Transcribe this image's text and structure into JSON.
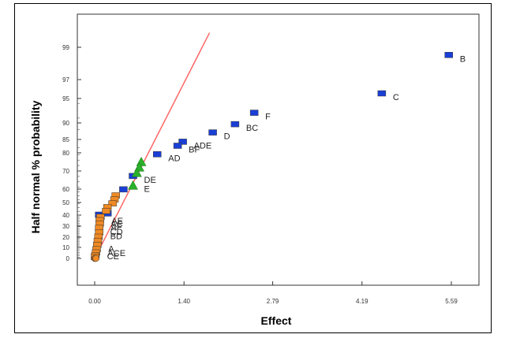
{
  "chart_data": {
    "type": "scatter",
    "xlabel": "Effect",
    "ylabel": "Half normal % probability",
    "xlim": [
      0,
      5.8
    ],
    "x_ticks": [
      "0.00",
      "1.40",
      "2.79",
      "4.19",
      "5.59"
    ],
    "x_tick_values": [
      0.0,
      1.4,
      2.79,
      4.19,
      5.59
    ],
    "y_ticks": [
      "0",
      "10",
      "20",
      "30",
      "40",
      "50",
      "60",
      "70",
      "80",
      "85",
      "90",
      "95",
      "97",
      "99"
    ],
    "y_tick_values": [
      0,
      10,
      20,
      30,
      40,
      50,
      60,
      70,
      80,
      85,
      90,
      95,
      97,
      99
    ],
    "grid": false,
    "reference_line": {
      "color": "#ff6666",
      "from": [
        0.0,
        0
      ],
      "to": [
        1.8,
        99.9
      ]
    },
    "colors": {
      "positive": "#1a3fd6",
      "negative": "#f08a24",
      "error": "#f08a24",
      "triangle": "#2ab02a"
    },
    "series": [
      {
        "marker": "square",
        "color": "#1a3fd6",
        "points": [
          {
            "label": "B",
            "x": 5.55,
            "y": 98.5
          },
          {
            "label": "C",
            "x": 4.5,
            "y": 95.5
          },
          {
            "label": "F",
            "x": 2.5,
            "y": 92.0
          },
          {
            "label": "BC",
            "x": 2.2,
            "y": 89.5
          },
          {
            "label": "D",
            "x": 1.85,
            "y": 87.0
          },
          {
            "label": "ADE",
            "x": 1.38,
            "y": 84.0
          },
          {
            "label": "BF",
            "x": 1.3,
            "y": 82.5
          },
          {
            "label": "AD",
            "x": 0.98,
            "y": 79.0
          },
          {
            "label": "DE",
            "x": 0.6,
            "y": 67.0
          },
          {
            "label": "",
            "x": 0.45,
            "y": 59.5
          },
          {
            "label": "",
            "x": 0.2,
            "y": 41.0
          },
          {
            "label": "",
            "x": 0.07,
            "y": 40.0
          }
        ]
      },
      {
        "marker": "triangle",
        "color": "#2ab02a",
        "points": [
          {
            "label": "",
            "x": 0.73,
            "y": 75.0
          },
          {
            "label": "",
            "x": 0.7,
            "y": 72.0
          },
          {
            "label": "",
            "x": 0.66,
            "y": 69.0
          },
          {
            "label": "E",
            "x": 0.6,
            "y": 62.0
          }
        ]
      },
      {
        "marker": "square",
        "color": "#f08a24",
        "points": [
          {
            "label": "",
            "x": 0.33,
            "y": 55.0
          },
          {
            "label": "",
            "x": 0.31,
            "y": 52.0
          },
          {
            "label": "",
            "x": 0.28,
            "y": 49.0
          },
          {
            "label": "",
            "x": 0.2,
            "y": 46.0
          },
          {
            "label": "",
            "x": 0.18,
            "y": 43.0
          },
          {
            "label": "AE",
            "x": 0.09,
            "y": 38.0
          },
          {
            "label": "AC",
            "x": 0.08,
            "y": 35.0
          },
          {
            "label": "AF",
            "x": 0.08,
            "y": 32.0
          },
          {
            "label": "CD",
            "x": 0.07,
            "y": 28.0
          },
          {
            "label": "BD",
            "x": 0.07,
            "y": 24.0
          },
          {
            "label": "",
            "x": 0.06,
            "y": 20.0
          },
          {
            "label": "",
            "x": 0.05,
            "y": 16.0
          },
          {
            "label": "A",
            "x": 0.04,
            "y": 12.0
          },
          {
            "label": "ACE",
            "x": 0.03,
            "y": 8.0
          },
          {
            "label": "CE",
            "x": 0.02,
            "y": 5.0
          },
          {
            "label": "",
            "x": 0.01,
            "y": 2.5
          },
          {
            "label": "",
            "x": 0.005,
            "y": 1.0
          }
        ]
      },
      {
        "marker": "circle",
        "color": "#f08a24",
        "points": [
          {
            "label": "",
            "x": 0.0,
            "y": 0.0
          },
          {
            "label": "",
            "x": 0.01,
            "y": 0.0
          },
          {
            "label": "",
            "x": 0.02,
            "y": 0.0
          }
        ]
      }
    ]
  }
}
